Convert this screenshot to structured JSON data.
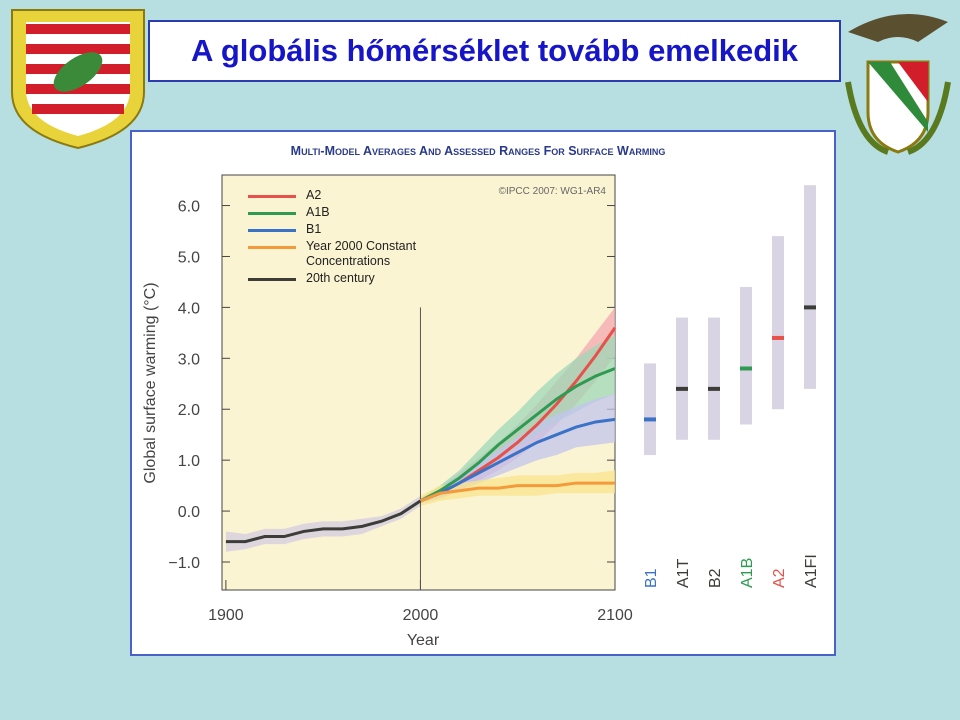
{
  "slide_title": "A globális hőmérséklet tovább emelkedik",
  "chart_data": {
    "type": "line",
    "title": "Multi-Model Averages and Assessed Ranges for Surface Warming",
    "annotation": "©IPCC  2007: WG1-AR4",
    "xlabel": "Year",
    "ylabel": "Global surface warming (°C)",
    "xlim": [
      1898,
      2100
    ],
    "xticks": [
      1900,
      2000,
      2100
    ],
    "ylim": [
      -1.55,
      6.6
    ],
    "yticks": [
      {
        "value": -1,
        "label": "−1.0"
      },
      {
        "value": 0,
        "label": "0.0"
      },
      {
        "value": 1,
        "label": "1.0"
      },
      {
        "value": 2,
        "label": "2.0"
      },
      {
        "value": 3,
        "label": "3.0"
      },
      {
        "value": 4,
        "label": "4.0"
      },
      {
        "value": 5,
        "label": "5.0"
      },
      {
        "value": 6,
        "label": "6.0"
      }
    ],
    "series": [
      {
        "name": "A2",
        "color": "#e8504a",
        "band_color": "#f4a8b0",
        "x": [
          2000,
          2010,
          2020,
          2030,
          2040,
          2050,
          2060,
          2070,
          2080,
          2090,
          2100
        ],
        "values": [
          0.2,
          0.35,
          0.55,
          0.8,
          1.05,
          1.35,
          1.7,
          2.1,
          2.55,
          3.05,
          3.6
        ],
        "lower": [
          0.15,
          0.25,
          0.4,
          0.6,
          0.8,
          1.05,
          1.35,
          1.7,
          2.1,
          2.55,
          3.05
        ],
        "upper": [
          0.25,
          0.45,
          0.75,
          1.05,
          1.35,
          1.7,
          2.1,
          2.55,
          3.0,
          3.5,
          4.0
        ]
      },
      {
        "name": "A1B",
        "color": "#2f9a52",
        "band_color": "#9ed8b8",
        "x": [
          2000,
          2010,
          2020,
          2030,
          2040,
          2050,
          2060,
          2070,
          2080,
          2090,
          2100
        ],
        "values": [
          0.2,
          0.4,
          0.65,
          0.95,
          1.3,
          1.6,
          1.9,
          2.2,
          2.45,
          2.65,
          2.8
        ],
        "lower": [
          0.15,
          0.3,
          0.5,
          0.75,
          1.0,
          1.25,
          1.5,
          1.75,
          1.95,
          2.15,
          2.3
        ],
        "upper": [
          0.25,
          0.5,
          0.8,
          1.2,
          1.6,
          1.95,
          2.35,
          2.7,
          3.0,
          3.25,
          3.45
        ]
      },
      {
        "name": "B1",
        "color": "#3a72c8",
        "band_color": "#c2c4ee",
        "x": [
          2000,
          2010,
          2020,
          2030,
          2040,
          2050,
          2060,
          2070,
          2080,
          2090,
          2100
        ],
        "values": [
          0.2,
          0.35,
          0.55,
          0.75,
          0.95,
          1.15,
          1.35,
          1.5,
          1.65,
          1.75,
          1.8
        ],
        "lower": [
          0.15,
          0.25,
          0.4,
          0.55,
          0.7,
          0.85,
          1.0,
          1.1,
          1.25,
          1.3,
          1.35
        ],
        "upper": [
          0.25,
          0.45,
          0.7,
          0.95,
          1.2,
          1.45,
          1.7,
          1.9,
          2.05,
          2.2,
          2.3
        ]
      },
      {
        "name": "Year 2000 Constant Concentrations",
        "color": "#f59a3a",
        "band_color": "#f8e48c",
        "x": [
          2000,
          2010,
          2020,
          2030,
          2040,
          2050,
          2060,
          2070,
          2080,
          2090,
          2100
        ],
        "values": [
          0.2,
          0.35,
          0.4,
          0.45,
          0.45,
          0.5,
          0.5,
          0.5,
          0.55,
          0.55,
          0.55
        ],
        "lower": [
          0.1,
          0.2,
          0.25,
          0.3,
          0.3,
          0.3,
          0.3,
          0.35,
          0.35,
          0.35,
          0.35
        ],
        "upper": [
          0.3,
          0.5,
          0.55,
          0.6,
          0.65,
          0.7,
          0.7,
          0.7,
          0.75,
          0.75,
          0.8
        ]
      },
      {
        "name": "20th century",
        "color": "#3c3c38",
        "band_color": "#d4cce0",
        "x": [
          1900,
          1910,
          1920,
          1930,
          1940,
          1950,
          1960,
          1970,
          1980,
          1990,
          2000
        ],
        "values": [
          -0.6,
          -0.6,
          -0.5,
          -0.5,
          -0.4,
          -0.35,
          -0.35,
          -0.3,
          -0.2,
          -0.05,
          0.2
        ],
        "lower": [
          -0.8,
          -0.75,
          -0.65,
          -0.65,
          -0.55,
          -0.5,
          -0.5,
          -0.45,
          -0.3,
          -0.15,
          0.1
        ],
        "upper": [
          -0.4,
          -0.45,
          -0.35,
          -0.35,
          -0.25,
          -0.2,
          -0.2,
          -0.15,
          -0.1,
          0.05,
          0.3
        ]
      }
    ],
    "range_bars": {
      "categories": [
        "B1",
        "A1T",
        "B2",
        "A1B",
        "A2",
        "A1FI"
      ],
      "colors": [
        "#3a72c8",
        "#3c3c38",
        "#3c3c38",
        "#2f9a52",
        "#e8504a",
        "#3c3c38"
      ],
      "low": [
        1.1,
        1.4,
        1.4,
        1.7,
        2.0,
        2.4
      ],
      "high": [
        2.9,
        3.8,
        3.8,
        4.4,
        5.4,
        6.4
      ],
      "best": [
        1.8,
        2.4,
        2.4,
        2.8,
        3.4,
        4.0
      ]
    }
  }
}
